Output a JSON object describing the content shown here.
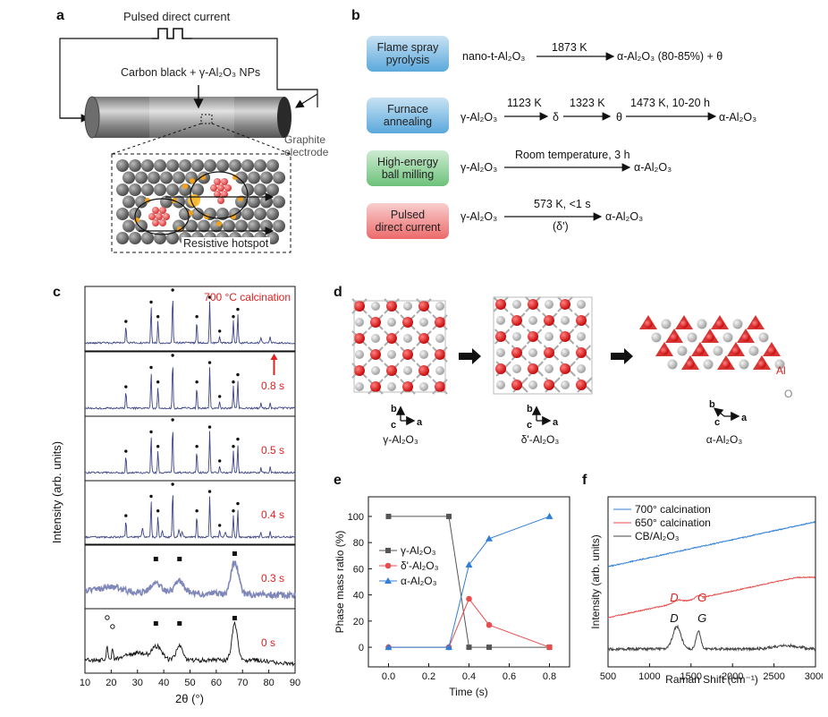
{
  "panels": {
    "a": "a",
    "b": "b",
    "c": "c",
    "d": "d",
    "e": "e",
    "f": "f"
  },
  "panel_a": {
    "pulse_label": "Pulsed direct current",
    "sample_label": "Carbon black + γ-Al₂O₃ NPs",
    "electrode_label_1": "Graphite",
    "electrode_label_2": "electrode",
    "hotspot_label": "Resistive hotspot"
  },
  "panel_b": {
    "methods": [
      {
        "name_1": "Flame spray",
        "name_2": "pyrolysis",
        "color": "#5aa8dc",
        "start": "nano-t-Al₂O₃",
        "steps": [
          {
            "cond": "1873 K",
            "product": "α-Al₂O₃ (80-85%) + θ"
          }
        ]
      },
      {
        "name_1": "Furnace",
        "name_2": "annealing",
        "color": "#5aa8dc",
        "start": "γ-Al₂O₃",
        "steps": [
          {
            "cond": "1123 K",
            "product": "δ"
          },
          {
            "cond": "1323 K",
            "product": "θ"
          },
          {
            "cond": "1473 K, 10-20 h",
            "product": "α-Al₂O₃"
          }
        ]
      },
      {
        "name_1": "High-energy",
        "name_2": "ball milling",
        "color": "#6cc27a",
        "start": "γ-Al₂O₃",
        "steps": [
          {
            "cond": "Room temperature, 3 h",
            "product": "α-Al₂O₃"
          }
        ]
      },
      {
        "name_1": "Pulsed",
        "name_2": "direct current",
        "color": "#ec6a6a",
        "start": "γ-Al₂O₃",
        "steps": [
          {
            "cond": "573 K, <1 s",
            "sub": "(δ')",
            "product": "α-Al₂O₃"
          }
        ]
      }
    ]
  },
  "panel_c": {
    "ylabel": "Intensity (arb. units)",
    "xlabel": "2θ (°)",
    "xticks": [
      "10",
      "20",
      "30",
      "40",
      "50",
      "60",
      "70",
      "80",
      "90"
    ],
    "traces": [
      {
        "label": "700 °C calcination",
        "color": "#e02020"
      },
      {
        "label": "0.8 s",
        "color": "#e02020"
      },
      {
        "label": "0.5 s",
        "color": "#e02020"
      },
      {
        "label": "0.4 s",
        "color": "#e02020"
      },
      {
        "label": "0.3 s",
        "color": "#e02020"
      },
      {
        "label": "0 s",
        "color": "#e02020"
      }
    ]
  },
  "panel_d": {
    "structures": [
      {
        "name": "γ-Al₂O₃"
      },
      {
        "name": "δ'-Al₂O₃"
      },
      {
        "name": "α-Al₂O₃"
      }
    ],
    "axis_b": "b",
    "axis_c": "c",
    "axis_a": "a",
    "legend_al": "Al",
    "legend_o": "O"
  },
  "chart_data": [
    {
      "type": "line",
      "panel": "e",
      "xlabel": "Time (s)",
      "ylabel": "Phase mass ratio (%)",
      "xlim": [
        -0.1,
        0.9
      ],
      "ylim": [
        -15,
        115
      ],
      "xticks": [
        0.0,
        0.2,
        0.4,
        0.6,
        0.8
      ],
      "xtick_labels": [
        "0.0",
        "0.2",
        "0.4",
        "0.6",
        "0.8"
      ],
      "yticks": [
        0,
        20,
        40,
        60,
        80,
        100
      ],
      "ytick_labels": [
        "0",
        "20",
        "40",
        "60",
        "80",
        "100"
      ],
      "x": [
        0.0,
        0.3,
        0.4,
        0.5,
        0.8
      ],
      "series": [
        {
          "name": "γ-Al₂O₃",
          "color": "#555555",
          "marker": "square",
          "values": [
            100,
            100,
            0,
            0,
            0
          ]
        },
        {
          "name": "δ'-Al₂O₃",
          "color": "#e84c4c",
          "marker": "circle",
          "values": [
            0,
            0,
            37,
            17,
            0
          ]
        },
        {
          "name": "α-Al₂O₃",
          "color": "#2f7fd6",
          "marker": "triangle",
          "values": [
            0,
            0,
            63,
            83,
            100
          ]
        }
      ]
    },
    {
      "type": "line",
      "panel": "f",
      "xlabel": "Raman Shift (cm⁻¹)",
      "ylabel": "Intensity (arb. units)",
      "xlim": [
        500,
        3000
      ],
      "xticks": [
        500,
        1000,
        1500,
        2000,
        2500,
        3000
      ],
      "xtick_labels": [
        "500",
        "1000",
        "1500",
        "2000",
        "2500",
        "3000"
      ],
      "series": [
        {
          "name": "700° calcination",
          "color": "#2f7fd6"
        },
        {
          "name": "650° calcination",
          "color": "#e84c4c",
          "peak_labels": [
            "D",
            "G"
          ]
        },
        {
          "name": "CB/Al₂O₃",
          "color": "#444444",
          "peak_labels": [
            "D",
            "G"
          ]
        }
      ]
    }
  ]
}
